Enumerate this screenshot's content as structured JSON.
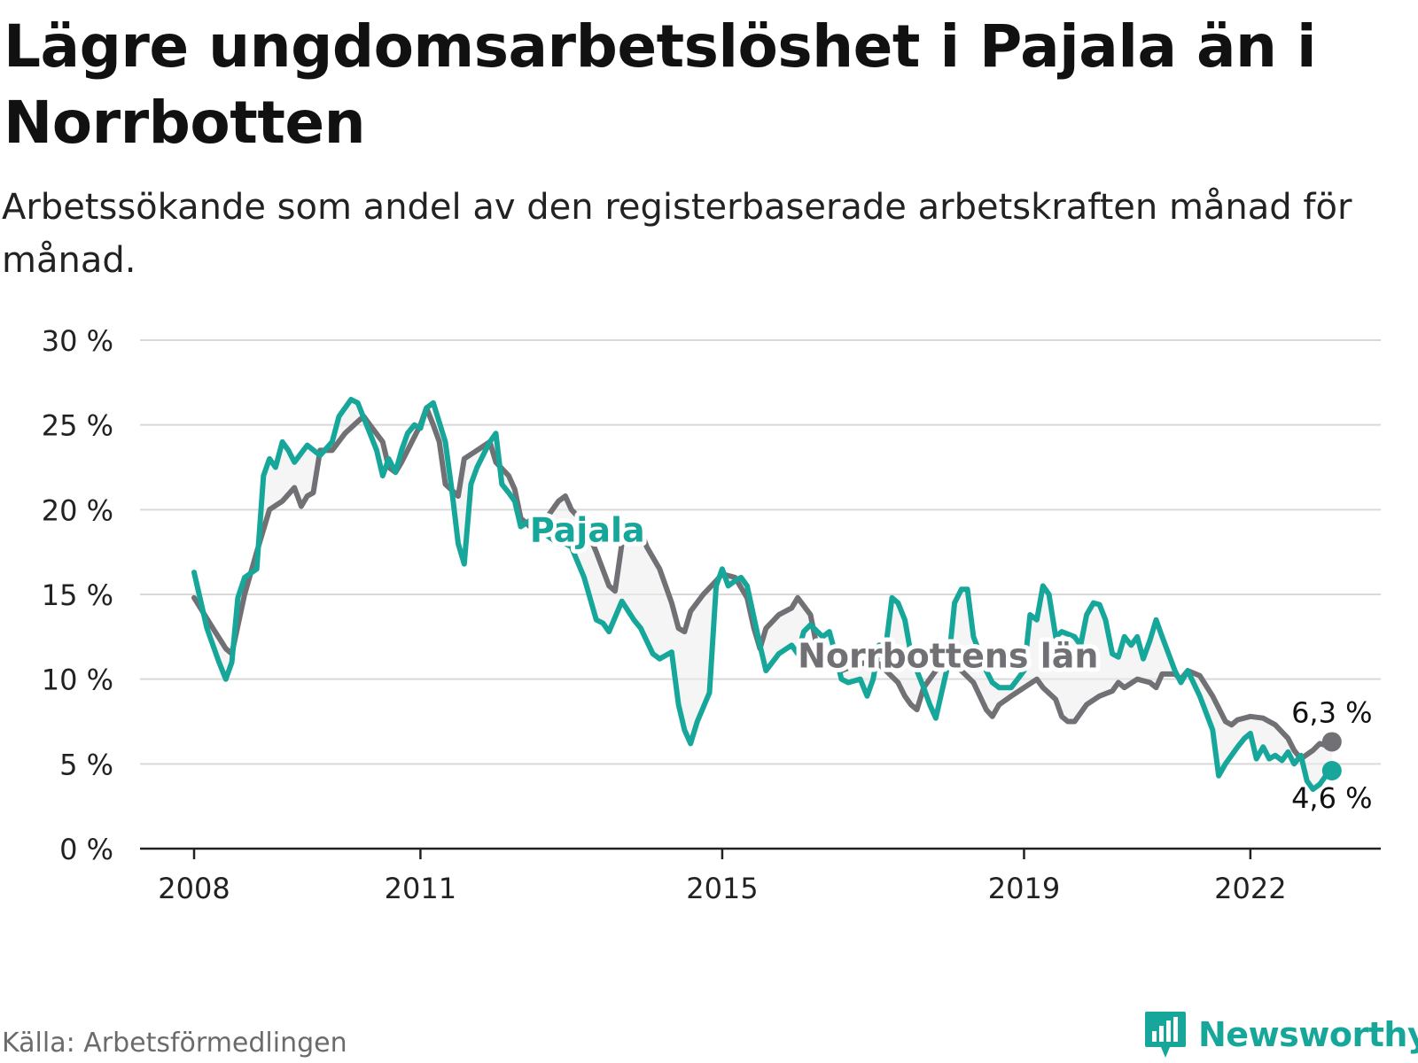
{
  "title": "Lägre ungdomsarbetslöshet i Pajala än i Norrbotten",
  "subtitle": "Arbetssökande som andel av den registerbaserade arbetskraften månad för månad.",
  "source": "Källa: Arbetsförmedlingen",
  "brand": {
    "name": "Newsworthy",
    "icon": "newsworthy-logo-icon"
  },
  "colors": {
    "pajala": "#17a79a",
    "norrbotten": "#717074",
    "grid": "#d9d9d9",
    "axis": "#222222",
    "text": "#222222"
  },
  "chart_data": {
    "type": "line",
    "ylim": [
      0,
      30
    ],
    "yticks": [
      0,
      5,
      10,
      15,
      20,
      25,
      30
    ],
    "ytick_labels": [
      "0 %",
      "5 %",
      "10 %",
      "15 %",
      "20 %",
      "25 %",
      "30 %"
    ],
    "xlim": [
      2008.0,
      2023.0
    ],
    "xticks": [
      2008,
      2011,
      2015,
      2019,
      2022
    ],
    "xtick_labels": [
      "2008",
      "2011",
      "2015",
      "2019",
      "2022"
    ],
    "series": [
      {
        "name": "Norrbottens län",
        "color": "#717074",
        "label": "Norrbottens län",
        "end_label": "6,3 %",
        "points": [
          [
            2008.0,
            14.8
          ],
          [
            2008.25,
            13.0
          ],
          [
            2008.42,
            11.8
          ],
          [
            2008.5,
            11.5
          ],
          [
            2008.67,
            15.0
          ],
          [
            2008.83,
            17.5
          ],
          [
            2009.0,
            20.0
          ],
          [
            2009.17,
            20.5
          ],
          [
            2009.33,
            21.3
          ],
          [
            2009.42,
            20.2
          ],
          [
            2009.5,
            20.8
          ],
          [
            2009.58,
            21.0
          ],
          [
            2009.67,
            23.5
          ],
          [
            2009.83,
            23.5
          ],
          [
            2010.0,
            24.5
          ],
          [
            2010.17,
            25.2
          ],
          [
            2010.25,
            25.5
          ],
          [
            2010.33,
            25.0
          ],
          [
            2010.5,
            24.0
          ],
          [
            2010.58,
            22.5
          ],
          [
            2010.67,
            22.2
          ],
          [
            2010.75,
            22.8
          ],
          [
            2010.83,
            23.5
          ],
          [
            2011.0,
            25.0
          ],
          [
            2011.08,
            26.0
          ],
          [
            2011.17,
            25.0
          ],
          [
            2011.25,
            24.0
          ],
          [
            2011.33,
            21.5
          ],
          [
            2011.5,
            20.8
          ],
          [
            2011.58,
            23.0
          ],
          [
            2011.75,
            23.5
          ],
          [
            2011.92,
            24.0
          ],
          [
            2012.0,
            22.8
          ],
          [
            2012.17,
            22.0
          ],
          [
            2012.25,
            21.2
          ],
          [
            2012.33,
            19.5
          ],
          [
            2012.5,
            18.8
          ],
          [
            2012.67,
            19.5
          ],
          [
            2012.83,
            20.5
          ],
          [
            2012.92,
            20.8
          ],
          [
            2013.0,
            20.0
          ],
          [
            2013.17,
            19.2
          ],
          [
            2013.33,
            17.5
          ],
          [
            2013.5,
            15.5
          ],
          [
            2013.58,
            15.2
          ],
          [
            2013.67,
            18.0
          ],
          [
            2013.83,
            18.5
          ],
          [
            2013.92,
            18.8
          ],
          [
            2014.0,
            17.8
          ],
          [
            2014.17,
            16.5
          ],
          [
            2014.33,
            14.5
          ],
          [
            2014.42,
            13.0
          ],
          [
            2014.5,
            12.8
          ],
          [
            2014.58,
            14.0
          ],
          [
            2014.75,
            15.0
          ],
          [
            2014.92,
            15.8
          ],
          [
            2015.0,
            16.2
          ],
          [
            2015.17,
            16.0
          ],
          [
            2015.33,
            14.8
          ],
          [
            2015.42,
            13.0
          ],
          [
            2015.5,
            11.8
          ],
          [
            2015.58,
            13.0
          ],
          [
            2015.75,
            13.8
          ],
          [
            2015.92,
            14.2
          ],
          [
            2016.0,
            14.8
          ],
          [
            2016.17,
            13.8
          ],
          [
            2016.25,
            12.0
          ],
          [
            2016.42,
            10.8
          ],
          [
            2016.58,
            10.5
          ],
          [
            2016.75,
            10.8
          ],
          [
            2016.92,
            11.0
          ],
          [
            2017.0,
            11.2
          ],
          [
            2017.17,
            10.5
          ],
          [
            2017.33,
            9.8
          ],
          [
            2017.42,
            9.0
          ],
          [
            2017.5,
            8.5
          ],
          [
            2017.58,
            8.2
          ],
          [
            2017.67,
            9.5
          ],
          [
            2017.83,
            10.5
          ],
          [
            2018.0,
            11.0
          ],
          [
            2018.17,
            10.5
          ],
          [
            2018.33,
            9.8
          ],
          [
            2018.5,
            8.2
          ],
          [
            2018.58,
            7.8
          ],
          [
            2018.67,
            8.5
          ],
          [
            2018.83,
            9.0
          ],
          [
            2019.0,
            9.5
          ],
          [
            2019.17,
            10.0
          ],
          [
            2019.25,
            9.5
          ],
          [
            2019.42,
            8.8
          ],
          [
            2019.5,
            7.8
          ],
          [
            2019.58,
            7.5
          ],
          [
            2019.67,
            7.5
          ],
          [
            2019.83,
            8.5
          ],
          [
            2020.0,
            9.0
          ],
          [
            2020.17,
            9.3
          ],
          [
            2020.25,
            9.8
          ],
          [
            2020.33,
            9.5
          ],
          [
            2020.5,
            10.0
          ],
          [
            2020.67,
            9.8
          ],
          [
            2020.75,
            9.5
          ],
          [
            2020.83,
            10.3
          ],
          [
            2021.0,
            10.3
          ],
          [
            2021.08,
            10.0
          ],
          [
            2021.17,
            10.5
          ],
          [
            2021.33,
            10.2
          ],
          [
            2021.5,
            9.0
          ],
          [
            2021.67,
            7.5
          ],
          [
            2021.75,
            7.3
          ],
          [
            2021.83,
            7.6
          ],
          [
            2022.0,
            7.8
          ],
          [
            2022.17,
            7.7
          ],
          [
            2022.33,
            7.3
          ],
          [
            2022.5,
            6.5
          ],
          [
            2022.58,
            5.8
          ],
          [
            2022.67,
            5.3
          ],
          [
            2022.83,
            5.8
          ],
          [
            2022.92,
            6.2
          ],
          [
            2023.0,
            6.1
          ],
          [
            2023.08,
            6.3
          ]
        ]
      },
      {
        "name": "Pajala",
        "color": "#17a79a",
        "label": "Pajala",
        "end_label": "4,6 %",
        "points": [
          [
            2008.0,
            16.3
          ],
          [
            2008.17,
            13.0
          ],
          [
            2008.33,
            11.0
          ],
          [
            2008.42,
            10.0
          ],
          [
            2008.5,
            11.0
          ],
          [
            2008.58,
            14.8
          ],
          [
            2008.67,
            16.0
          ],
          [
            2008.83,
            16.5
          ],
          [
            2008.92,
            22.0
          ],
          [
            2009.0,
            23.0
          ],
          [
            2009.08,
            22.5
          ],
          [
            2009.17,
            24.0
          ],
          [
            2009.25,
            23.5
          ],
          [
            2009.33,
            22.8
          ],
          [
            2009.5,
            23.8
          ],
          [
            2009.67,
            23.2
          ],
          [
            2009.83,
            24.0
          ],
          [
            2009.92,
            25.5
          ],
          [
            2010.08,
            26.5
          ],
          [
            2010.17,
            26.3
          ],
          [
            2010.33,
            24.5
          ],
          [
            2010.42,
            23.5
          ],
          [
            2010.5,
            22.0
          ],
          [
            2010.58,
            23.0
          ],
          [
            2010.67,
            22.2
          ],
          [
            2010.75,
            23.5
          ],
          [
            2010.83,
            24.5
          ],
          [
            2010.92,
            25.0
          ],
          [
            2011.0,
            24.8
          ],
          [
            2011.08,
            26.0
          ],
          [
            2011.17,
            26.3
          ],
          [
            2011.33,
            24.0
          ],
          [
            2011.42,
            21.0
          ],
          [
            2011.5,
            18.0
          ],
          [
            2011.58,
            16.8
          ],
          [
            2011.67,
            21.5
          ],
          [
            2011.75,
            22.5
          ],
          [
            2011.92,
            24.0
          ],
          [
            2012.0,
            24.5
          ],
          [
            2012.08,
            21.5
          ],
          [
            2012.17,
            21.0
          ],
          [
            2012.25,
            20.5
          ],
          [
            2012.33,
            19.0
          ],
          [
            2012.5,
            19.5
          ],
          [
            2012.67,
            18.5
          ],
          [
            2012.83,
            18.0
          ],
          [
            2012.92,
            18.0
          ],
          [
            2013.0,
            17.8
          ],
          [
            2013.17,
            16.0
          ],
          [
            2013.33,
            13.5
          ],
          [
            2013.42,
            13.3
          ],
          [
            2013.5,
            12.8
          ],
          [
            2013.67,
            14.6
          ],
          [
            2013.83,
            13.5
          ],
          [
            2013.92,
            13.0
          ],
          [
            2014.08,
            11.5
          ],
          [
            2014.17,
            11.2
          ],
          [
            2014.33,
            11.6
          ],
          [
            2014.42,
            8.5
          ],
          [
            2014.5,
            7.0
          ],
          [
            2014.58,
            6.2
          ],
          [
            2014.67,
            7.5
          ],
          [
            2014.83,
            9.2
          ],
          [
            2014.92,
            15.5
          ],
          [
            2015.0,
            16.5
          ],
          [
            2015.08,
            15.5
          ],
          [
            2015.17,
            15.8
          ],
          [
            2015.25,
            16.0
          ],
          [
            2015.33,
            15.5
          ],
          [
            2015.5,
            12.0
          ],
          [
            2015.58,
            10.5
          ],
          [
            2015.75,
            11.5
          ],
          [
            2015.92,
            12.0
          ],
          [
            2016.0,
            11.5
          ],
          [
            2016.08,
            12.8
          ],
          [
            2016.17,
            13.2
          ],
          [
            2016.33,
            12.5
          ],
          [
            2016.42,
            12.8
          ],
          [
            2016.5,
            11.5
          ],
          [
            2016.58,
            10.0
          ],
          [
            2016.67,
            9.8
          ],
          [
            2016.83,
            10.0
          ],
          [
            2016.92,
            9.0
          ],
          [
            2017.0,
            10.0
          ],
          [
            2017.08,
            12.0
          ],
          [
            2017.17,
            12.0
          ],
          [
            2017.25,
            14.8
          ],
          [
            2017.33,
            14.5
          ],
          [
            2017.42,
            13.5
          ],
          [
            2017.5,
            11.5
          ],
          [
            2017.58,
            10.5
          ],
          [
            2017.67,
            9.5
          ],
          [
            2017.75,
            8.5
          ],
          [
            2017.83,
            7.7
          ],
          [
            2018.0,
            11.0
          ],
          [
            2018.08,
            14.5
          ],
          [
            2018.17,
            15.3
          ],
          [
            2018.25,
            15.3
          ],
          [
            2018.33,
            12.5
          ],
          [
            2018.5,
            10.5
          ],
          [
            2018.58,
            9.8
          ],
          [
            2018.67,
            9.5
          ],
          [
            2018.83,
            9.5
          ],
          [
            2019.0,
            10.5
          ],
          [
            2019.08,
            13.8
          ],
          [
            2019.17,
            13.5
          ],
          [
            2019.25,
            15.5
          ],
          [
            2019.33,
            15.0
          ],
          [
            2019.42,
            12.5
          ],
          [
            2019.5,
            12.8
          ],
          [
            2019.67,
            12.5
          ],
          [
            2019.75,
            12.0
          ],
          [
            2019.83,
            13.8
          ],
          [
            2019.92,
            14.5
          ],
          [
            2020.0,
            14.4
          ],
          [
            2020.08,
            13.5
          ],
          [
            2020.17,
            11.5
          ],
          [
            2020.25,
            11.3
          ],
          [
            2020.33,
            12.5
          ],
          [
            2020.42,
            12.0
          ],
          [
            2020.5,
            12.5
          ],
          [
            2020.58,
            11.2
          ],
          [
            2020.67,
            12.3
          ],
          [
            2020.75,
            13.5
          ],
          [
            2020.83,
            12.5
          ],
          [
            2021.0,
            10.5
          ],
          [
            2021.08,
            9.8
          ],
          [
            2021.17,
            10.5
          ],
          [
            2021.33,
            9.0
          ],
          [
            2021.5,
            7.0
          ],
          [
            2021.58,
            4.3
          ],
          [
            2021.67,
            5.0
          ],
          [
            2021.83,
            6.0
          ],
          [
            2021.92,
            6.5
          ],
          [
            2022.0,
            6.8
          ],
          [
            2022.08,
            5.3
          ],
          [
            2022.17,
            6.0
          ],
          [
            2022.25,
            5.3
          ],
          [
            2022.33,
            5.5
          ],
          [
            2022.42,
            5.2
          ],
          [
            2022.5,
            5.7
          ],
          [
            2022.58,
            5.0
          ],
          [
            2022.67,
            5.5
          ],
          [
            2022.75,
            4.0
          ],
          [
            2022.83,
            3.5
          ],
          [
            2022.92,
            3.8
          ],
          [
            2023.0,
            4.3
          ],
          [
            2023.08,
            4.6
          ]
        ]
      }
    ]
  }
}
